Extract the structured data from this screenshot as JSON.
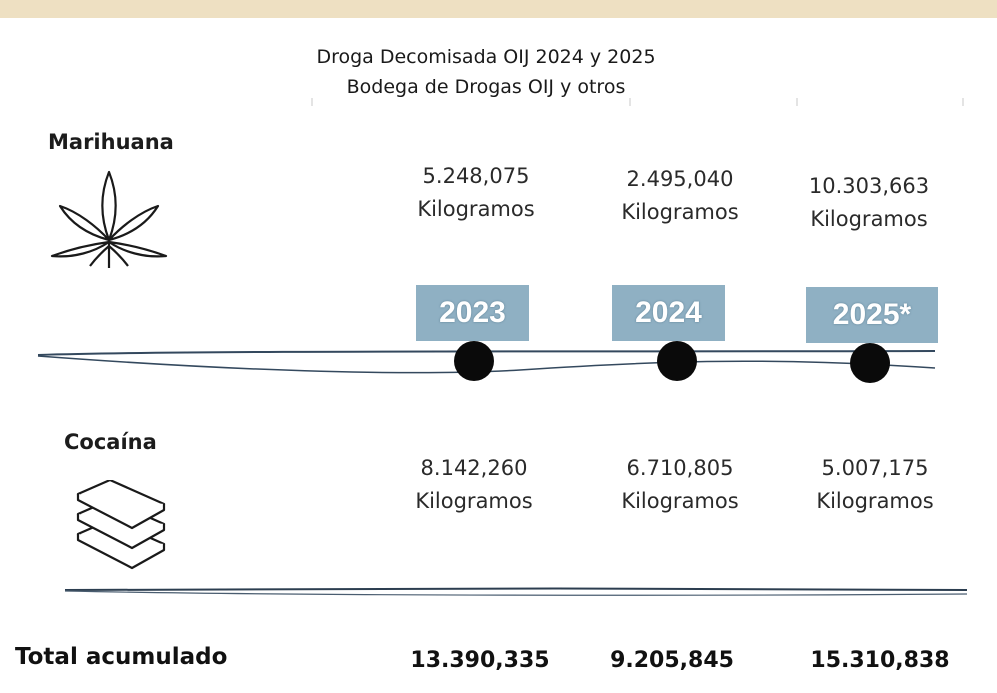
{
  "title": {
    "line1": "Droga Decomisada OIJ 2024 y 2025",
    "line2": "Bodega de Drogas OIJ y otros"
  },
  "years": [
    "2023",
    "2024",
    "2025*"
  ],
  "drugs": [
    {
      "name": "Marihuana",
      "icon": "cannabis-leaf-icon",
      "values": [
        {
          "amount": "5.248,075",
          "unit": "Kilogramos"
        },
        {
          "amount": "2.495,040",
          "unit": "Kilogramos"
        },
        {
          "amount": "10.303,663",
          "unit": "Kilogramos"
        }
      ]
    },
    {
      "name": "Cocaína",
      "icon": "stacked-packages-icon",
      "values": [
        {
          "amount": "8.142,260",
          "unit": "Kilogramos"
        },
        {
          "amount": "6.710,805",
          "unit": "Kilogramos"
        },
        {
          "amount": "5.007,175",
          "unit": "Kilogramos"
        }
      ]
    }
  ],
  "totals": {
    "label": "Total acumulado",
    "values": [
      "13.390,335",
      "9.205,845",
      "15.310,838"
    ]
  },
  "colors": {
    "top_bar": "#eee0c2",
    "year_box": "#8fb0c3",
    "timeline": "#34495e"
  }
}
